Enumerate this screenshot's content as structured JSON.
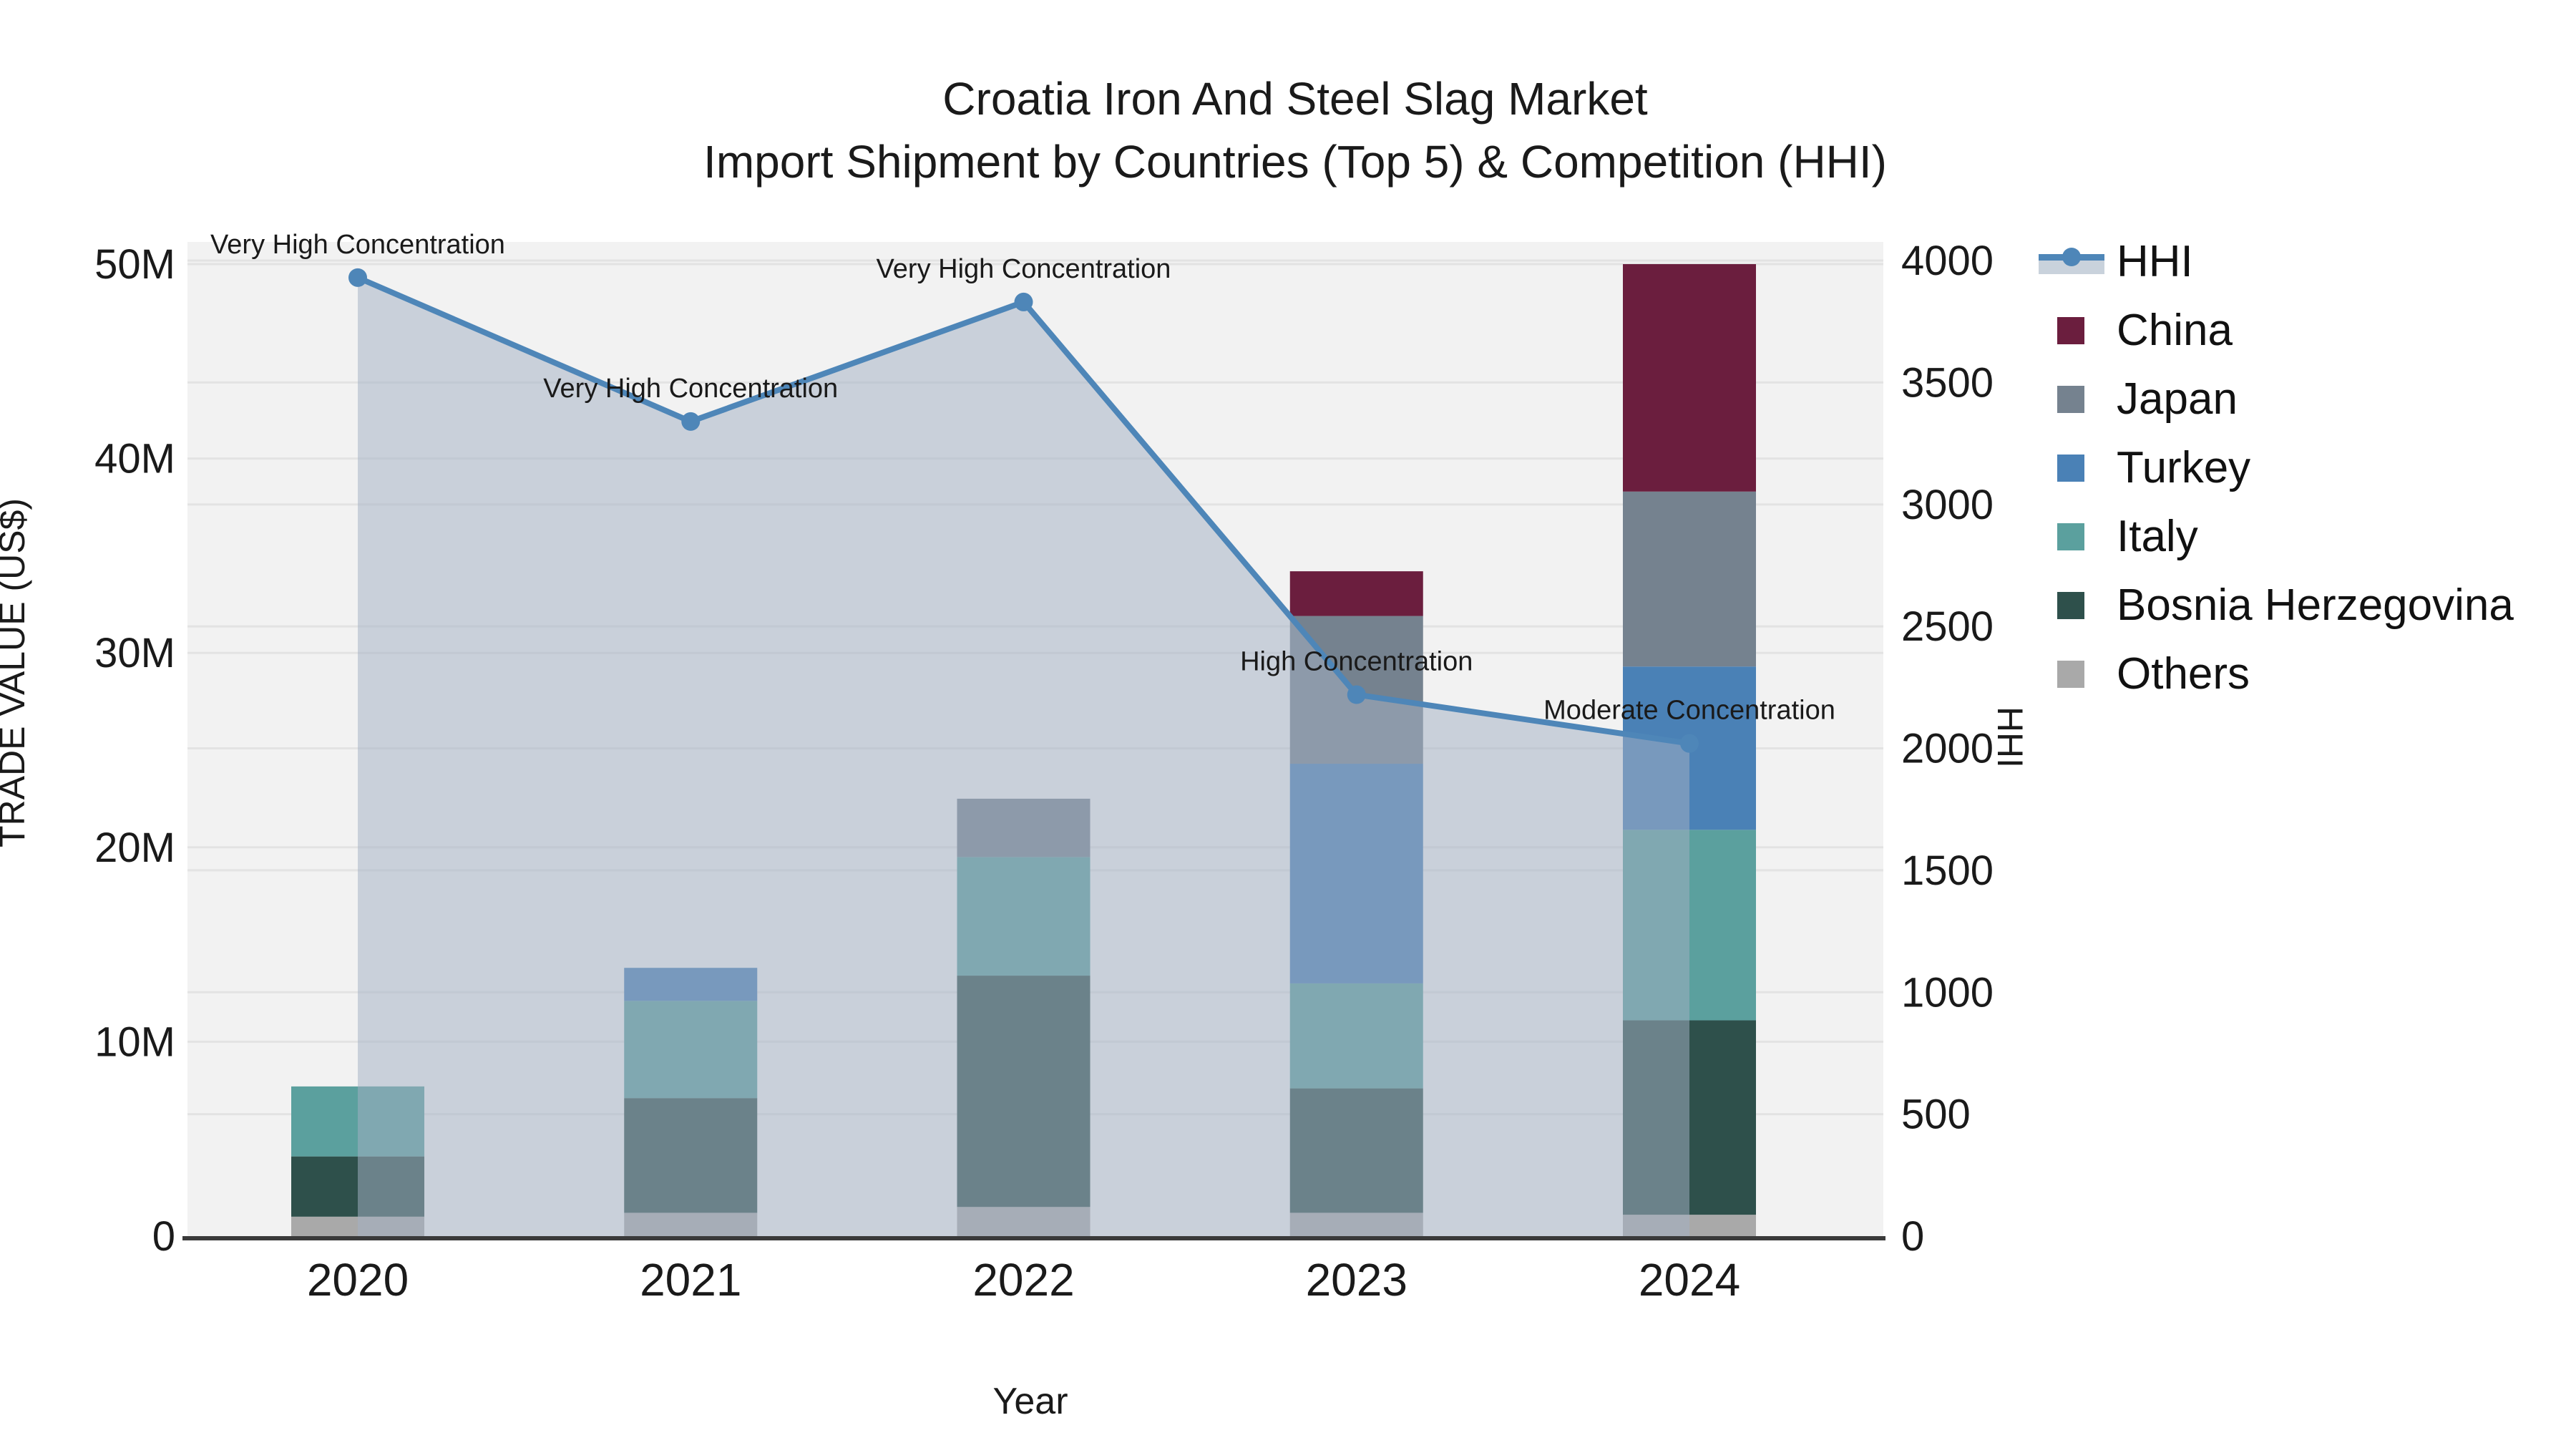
{
  "chart_data": {
    "type": "bar+line",
    "title_line1": "Croatia Iron And Steel Slag Market",
    "title_line2": "Import Shipment by Countries (Top 5) & Competition (HHI)",
    "xlabel": "Year",
    "ylabel_left": "TRADE VALUE (US$)",
    "ylabel_right": "HHI",
    "categories": [
      "2020",
      "2021",
      "2022",
      "2023",
      "2024"
    ],
    "stack_order": [
      "Others",
      "Bosnia Herzegovina",
      "Italy",
      "Turkey",
      "Japan",
      "China"
    ],
    "series": [
      {
        "name": "China",
        "color": "#6b1e3e",
        "values_musd": [
          0,
          0,
          0,
          2.3,
          11.7
        ]
      },
      {
        "name": "Japan",
        "color": "#75828f",
        "values_musd": [
          0,
          0,
          3.0,
          7.6,
          9.0
        ]
      },
      {
        "name": "Turkey",
        "color": "#4a81b6",
        "values_musd": [
          0,
          1.7,
          0,
          11.3,
          8.4
        ]
      },
      {
        "name": "Italy",
        "color": "#5ba09e",
        "values_musd": [
          3.6,
          5.0,
          6.1,
          5.4,
          9.8
        ]
      },
      {
        "name": "Bosnia Herzegovina",
        "color": "#2e504b",
        "values_musd": [
          3.1,
          5.9,
          11.9,
          6.4,
          10.0
        ]
      },
      {
        "name": "Others",
        "color": "#a9a9a9",
        "values_musd": [
          1.0,
          1.2,
          1.5,
          1.2,
          1.1
        ]
      }
    ],
    "hhi_line": {
      "name": "HHI",
      "color": "#4e86b8",
      "area_fill": "rgba(163,177,195,0.52)",
      "values": [
        3930,
        3340,
        3830,
        2220,
        2020
      ]
    },
    "annotations": [
      "Very High Concentration",
      "Very High Concentration",
      "Very High Concentration",
      "High Concentration",
      "Moderate Concentration"
    ],
    "y_left_axis": {
      "tick_labels": [
        "0",
        "10M",
        "20M",
        "30M",
        "40M",
        "50M"
      ],
      "tick_values": [
        0,
        10,
        20,
        30,
        40,
        50
      ],
      "range_musd": [
        0,
        51.2
      ]
    },
    "y_right_axis": {
      "tick_labels": [
        "0",
        "500",
        "1000",
        "1500",
        "2000",
        "2500",
        "3000",
        "3500",
        "4000"
      ],
      "tick_values": [
        0,
        500,
        1000,
        1500,
        2000,
        2500,
        3000,
        3500,
        4000
      ],
      "range": [
        0,
        4000
      ]
    },
    "legend_entries": [
      "HHI",
      "China",
      "Japan",
      "Turkey",
      "Italy",
      "Bosnia Herzegovina",
      "Others"
    ],
    "colors": {
      "plot_background": "#f2f2f2",
      "gridline": "#e3e3e3",
      "axis_line": "#3a3a3a",
      "legend_band": "#c9d2dc"
    },
    "legend_position": "right",
    "grid": "on"
  }
}
